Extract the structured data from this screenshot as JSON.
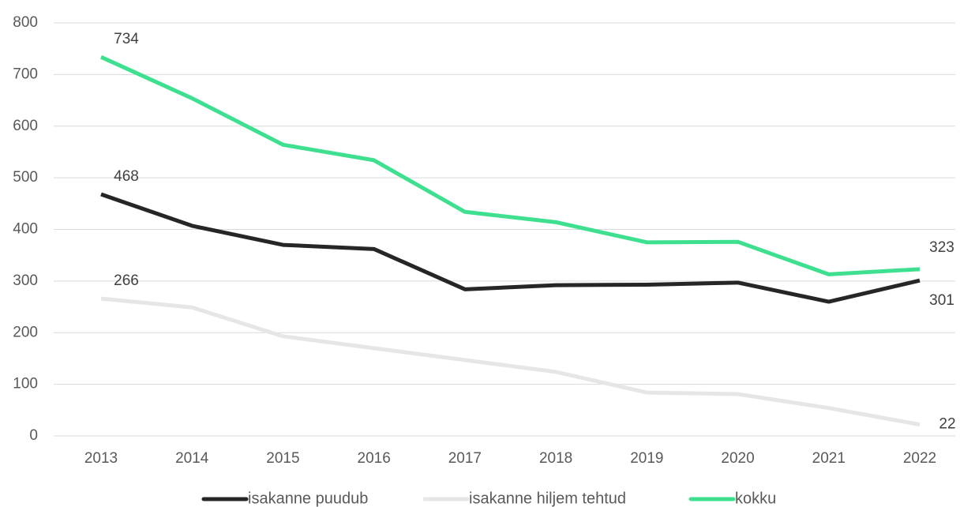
{
  "chart_data": {
    "type": "line",
    "categories": [
      "2013",
      "2014",
      "2015",
      "2016",
      "2017",
      "2018",
      "2019",
      "2020",
      "2021",
      "2022"
    ],
    "series": [
      {
        "name": "isakanne puudub",
        "color": "#262626",
        "values": [
          468,
          407,
          370,
          362,
          284,
          292,
          293,
          297,
          260,
          301
        ],
        "value_labels": [
          "468",
          null,
          null,
          null,
          null,
          null,
          null,
          null,
          null,
          "301"
        ]
      },
      {
        "name": "isakanne hiljem tehtud",
        "color": "#e6e6e6",
        "values": [
          266,
          249,
          193,
          170,
          147,
          124,
          84,
          81,
          54,
          22
        ],
        "value_labels": [
          "266",
          null,
          null,
          null,
          null,
          null,
          null,
          null,
          null,
          "22"
        ]
      },
      {
        "name": "kokku",
        "color": "#3ee08f",
        "values": [
          734,
          654,
          564,
          534,
          434,
          414,
          375,
          376,
          313,
          323
        ],
        "value_labels": [
          "734",
          null,
          null,
          null,
          null,
          null,
          null,
          null,
          null,
          "323"
        ]
      }
    ],
    "ylim": [
      0,
      800
    ],
    "yticks": [
      0,
      100,
      200,
      300,
      400,
      500,
      600,
      700,
      800
    ],
    "grid": true,
    "legend": "bottom"
  }
}
